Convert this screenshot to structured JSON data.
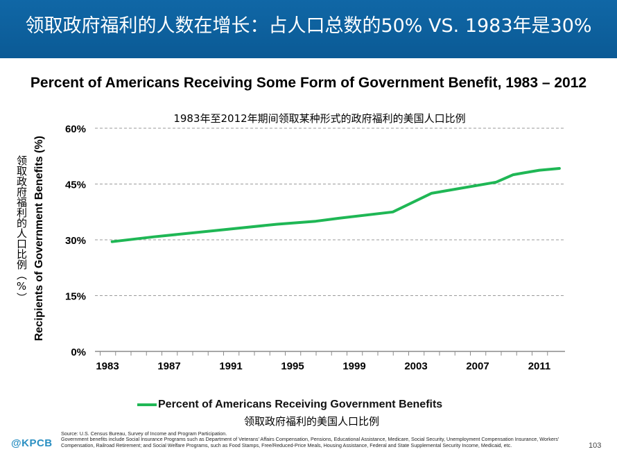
{
  "banner": {
    "title": "领取政府福利的人数在增长：占人口总数的50% VS. 1983年是30%"
  },
  "chart_data": {
    "type": "line",
    "title": "Percent of Americans Receiving Some Form of Government Benefit, 1983 – 2012",
    "subtitle": "1983年至2012年期间领取某种形式的政府福利的美国人口比例",
    "ylabel": "Recipients of Government Benefits (%)",
    "ylabel_cn": "领取政府福利的人口比例（%）",
    "xlabel": "",
    "x_ticks": [
      "1983",
      "1987",
      "1991",
      "1995",
      "1999",
      "2003",
      "2007",
      "2011"
    ],
    "y_ticks": [
      "0%",
      "15%",
      "30%",
      "45%",
      "60%"
    ],
    "y_tick_values": [
      0,
      15,
      30,
      45,
      60
    ],
    "ylim": [
      0,
      60
    ],
    "xlim": [
      1983,
      2012.5
    ],
    "grid": "horizontal dashed",
    "legend_position": "bottom",
    "series": [
      {
        "name": "Percent of Americans Receiving Government Benefits",
        "name_cn": "领取政府福利的美国人口比例",
        "color": "#1fb755",
        "x": [
          1983.3,
          1986,
          1990,
          1994,
          1996.5,
          1998,
          2001.5,
          2004,
          2008.2,
          2009.3,
          2010,
          2011,
          2012.3
        ],
        "y": [
          29.5,
          30.8,
          32.5,
          34.2,
          35,
          35.8,
          37.5,
          42.5,
          45.5,
          47.5,
          48,
          48.7,
          49.2
        ]
      }
    ]
  },
  "footer": {
    "logo": "@KPCB",
    "source": "Source: U.S. Census Bureau, Survey of Income and Program Participation.",
    "note": "Government benefits include Social Insurance Programs such as Department of Veterans' Affairs Compensation, Pensions, Educational Assistance, Medicare, Social Security, Unemployment Compensation Insurance, Workers' Compensation, Railroad Retirement; and Social Welfare Programs, such as Food Stamps, Free/Reduced-Price Meals, Housing Assistance, Federal and State Supplemental Security Income, Medicaid, etc.",
    "page_number": "103"
  }
}
